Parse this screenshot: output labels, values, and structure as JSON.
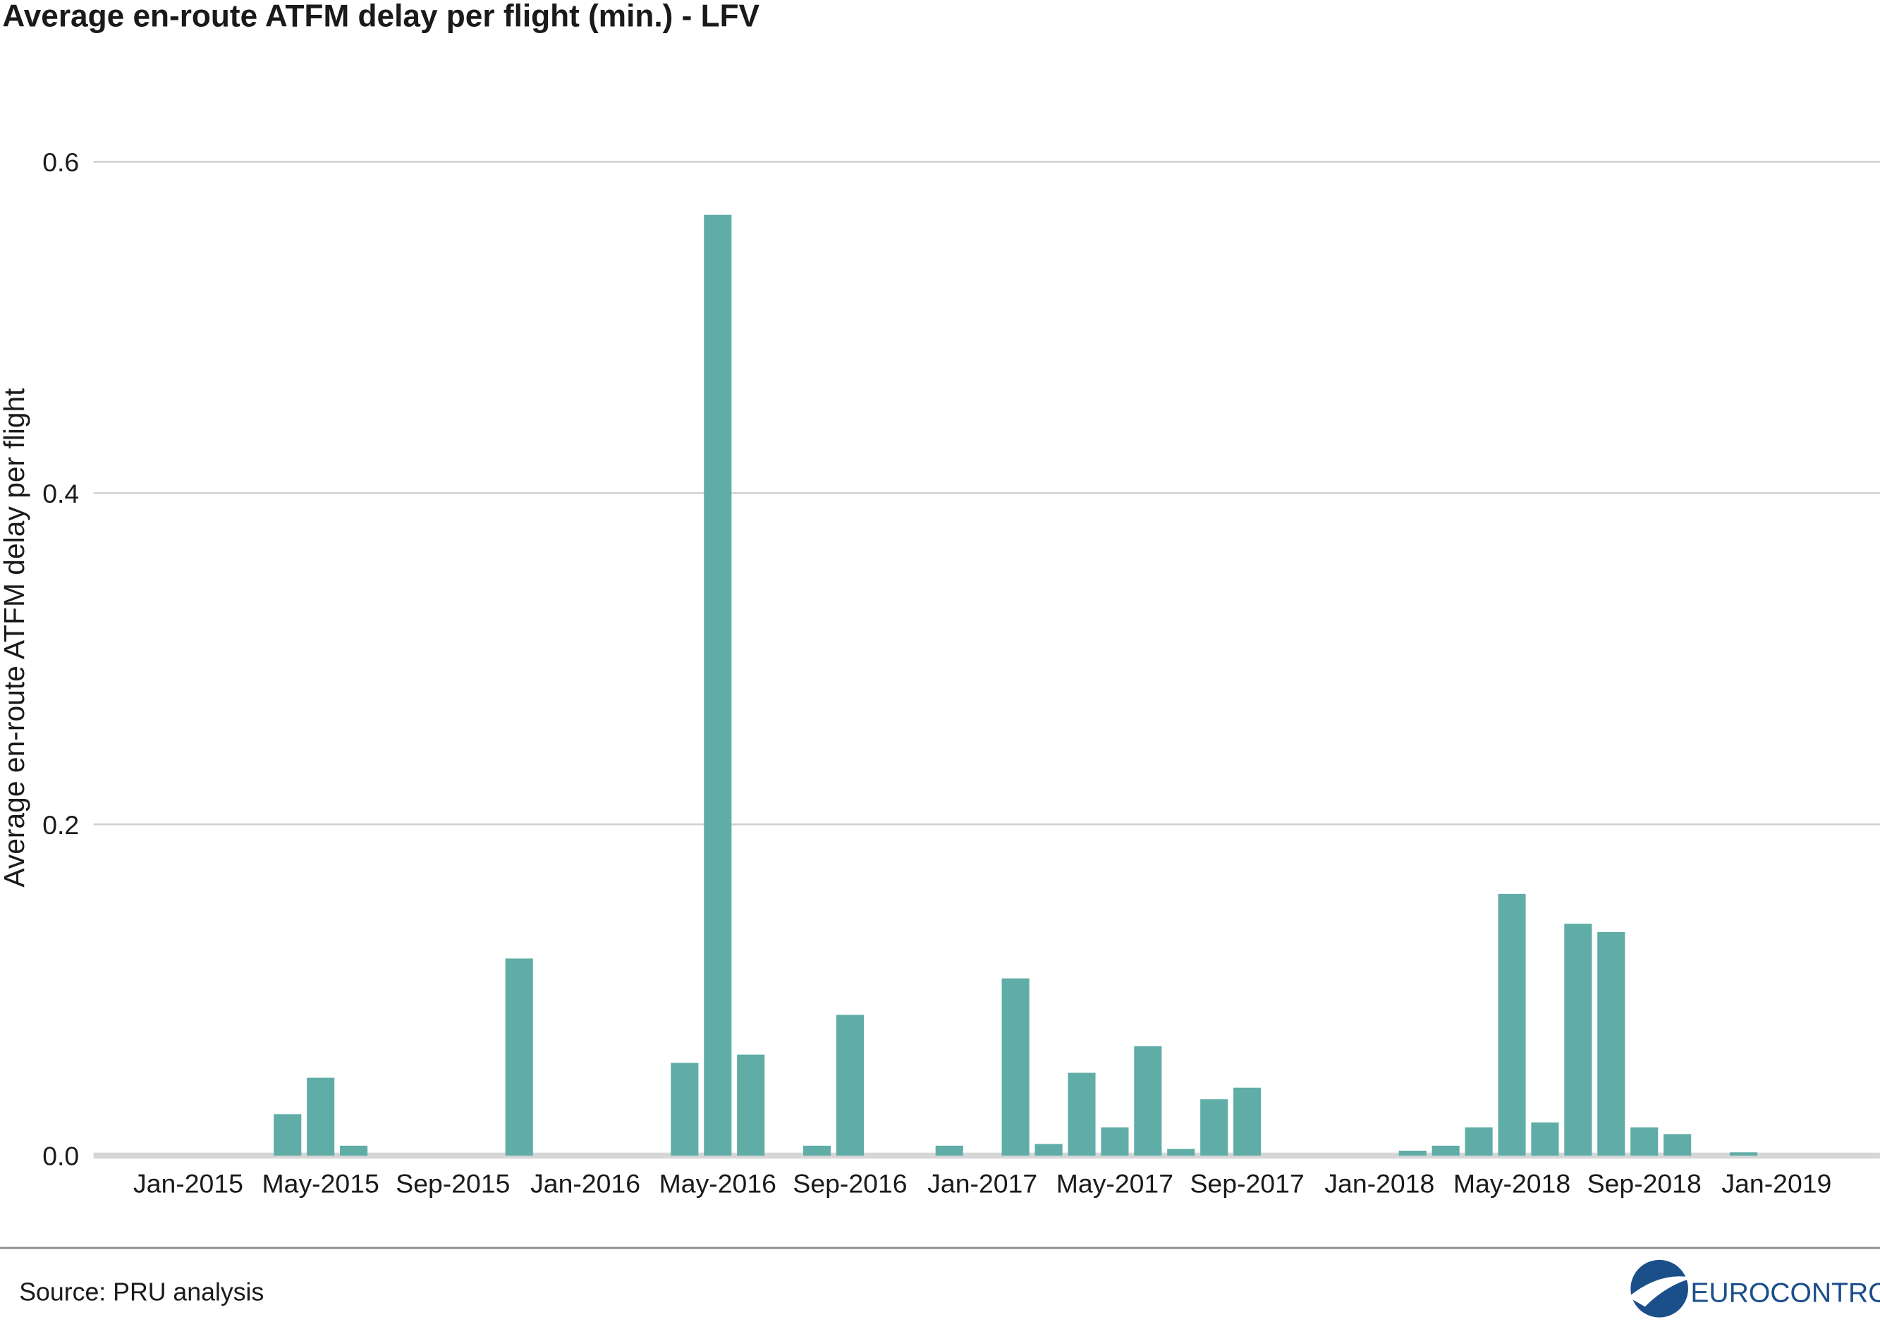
{
  "chart_data": {
    "type": "bar",
    "title": "Average en-route ATFM delay per flight (min.) - LFV",
    "y_label": "Average en-route ATFM delay per flight",
    "source": "Source: PRU analysis",
    "logo": "EUROCONTROL",
    "categories": [
      "Jan-2015",
      null,
      null,
      null,
      "May-2015",
      null,
      null,
      null,
      "Sep-2015",
      null,
      null,
      null,
      "Jan-2016",
      null,
      null,
      null,
      "May-2016",
      null,
      null,
      null,
      "Sep-2016",
      null,
      null,
      null,
      "Jan-2017",
      null,
      null,
      null,
      "May-2017",
      null,
      null,
      null,
      "Sep-2017",
      null,
      null,
      null,
      "Jan-2018",
      null,
      null,
      null,
      "May-2018",
      null,
      null,
      null,
      "Sep-2018",
      null,
      null,
      null,
      "Jan-2019"
    ],
    "values": [
      0,
      0,
      0,
      0.025,
      0.047,
      0.006,
      0,
      0,
      0,
      0,
      0.119,
      0,
      0,
      0,
      0,
      0.056,
      0.568,
      0.061,
      0,
      0.006,
      0.085,
      0,
      0,
      0.006,
      0,
      0.107,
      0.007,
      0.05,
      0.017,
      0.066,
      0.004,
      0.034,
      0.041,
      0,
      0,
      0,
      0,
      0.003,
      0.006,
      0.017,
      0.158,
      0.02,
      0.14,
      0.135,
      0.017,
      0.013,
      0,
      0.002,
      0
    ],
    "color": "#5fada6",
    "ylim": [
      0,
      0.6
    ],
    "yticks": [
      {
        "value": 0,
        "label": "0.0"
      },
      0.2,
      0.4,
      0.6
    ],
    "grid": true
  }
}
